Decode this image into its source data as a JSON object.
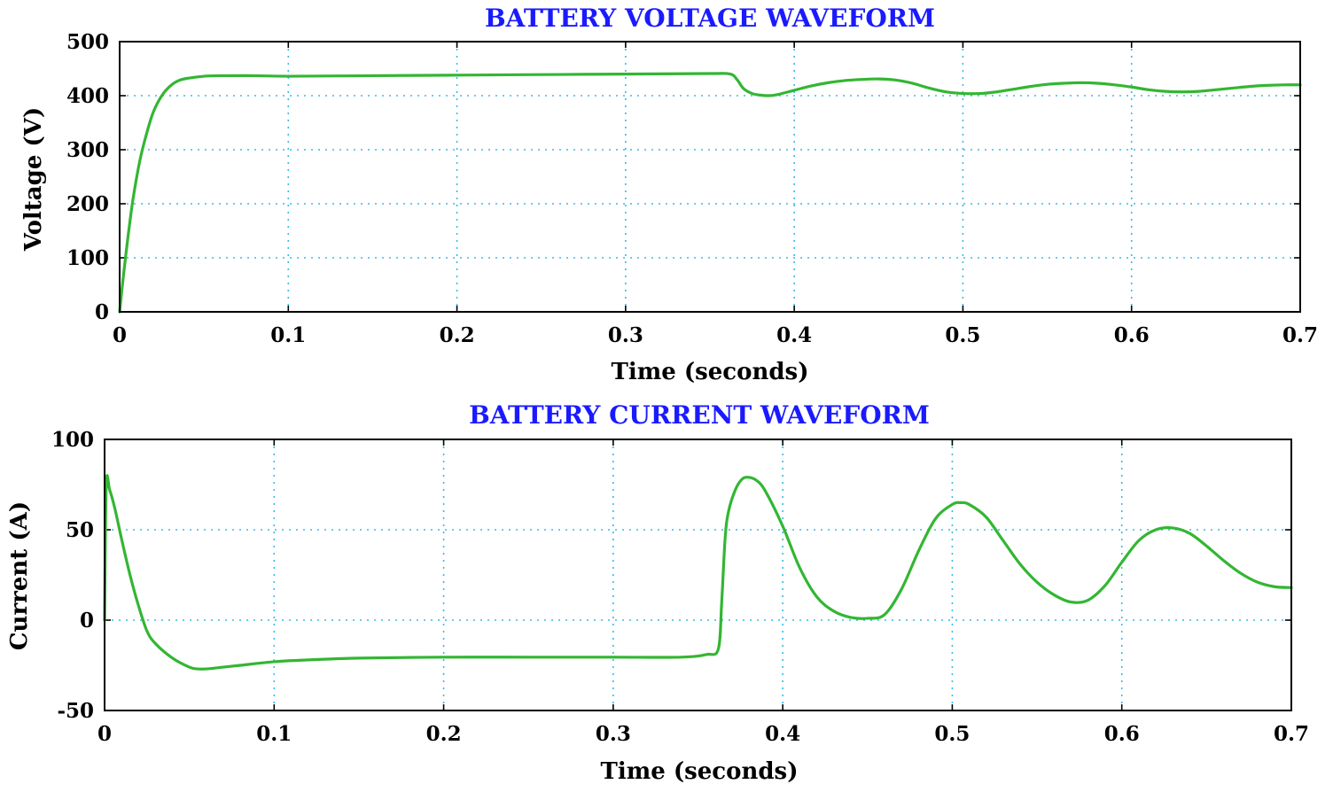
{
  "colors": {
    "title": "#1a1aff",
    "series": "#33b633",
    "grid": "#33bbee",
    "axis": "#000000"
  },
  "chart_data": [
    {
      "type": "line",
      "title": "BATTERY VOLTAGE WAVEFORM",
      "xlabel": "Time (seconds)",
      "ylabel": "Voltage (V)",
      "xlim": [
        0,
        0.7
      ],
      "ylim": [
        0,
        500
      ],
      "xticks": [
        0,
        0.1,
        0.2,
        0.3,
        0.4,
        0.5,
        0.6,
        0.7
      ],
      "xtick_labels": [
        "0",
        "0.1",
        "0.2",
        "0.3",
        "0.4",
        "0.5",
        "0.6",
        "0.7"
      ],
      "yticks": [
        0,
        100,
        200,
        300,
        400,
        500
      ],
      "ytick_labels": [
        "0",
        "100",
        "200",
        "300",
        "400",
        "500"
      ],
      "grid": true,
      "series": [
        {
          "color": "#33b633",
          "x": [
            0,
            0.002,
            0.005,
            0.008,
            0.012,
            0.016,
            0.02,
            0.025,
            0.03,
            0.035,
            0.04,
            0.05,
            0.06,
            0.08,
            0.1,
            0.15,
            0.2,
            0.25,
            0.3,
            0.35,
            0.362,
            0.366,
            0.37,
            0.375,
            0.38,
            0.385,
            0.39,
            0.4,
            0.41,
            0.42,
            0.43,
            0.44,
            0.45,
            0.46,
            0.47,
            0.48,
            0.49,
            0.5,
            0.51,
            0.52,
            0.53,
            0.54,
            0.55,
            0.56,
            0.57,
            0.58,
            0.59,
            0.6,
            0.61,
            0.62,
            0.63,
            0.64,
            0.65,
            0.66,
            0.67,
            0.68,
            0.69,
            0.7
          ],
          "y": [
            0,
            60,
            140,
            210,
            280,
            330,
            370,
            400,
            418,
            428,
            432,
            436,
            437,
            437,
            436,
            437,
            438,
            439,
            440,
            441,
            440,
            430,
            413,
            404,
            401,
            400,
            402,
            410,
            418,
            424,
            428,
            430,
            431,
            429,
            423,
            414,
            407,
            404,
            404,
            407,
            412,
            417,
            421,
            423,
            424,
            423,
            420,
            416,
            411,
            408,
            407,
            408,
            411,
            414,
            417,
            419,
            420,
            420
          ]
        }
      ]
    },
    {
      "type": "line",
      "title": "BATTERY CURRENT WAVEFORM",
      "xlabel": "Time (seconds)",
      "ylabel": "Current (A)",
      "xlim": [
        0,
        0.7
      ],
      "ylim": [
        -50,
        100
      ],
      "xticks": [
        0,
        0.1,
        0.2,
        0.3,
        0.4,
        0.5,
        0.6,
        0.7
      ],
      "xtick_labels": [
        "0",
        "0.1",
        "0.2",
        "0.3",
        "0.4",
        "0.5",
        "0.6",
        "0.7"
      ],
      "yticks": [
        -50,
        0,
        50,
        100
      ],
      "ytick_labels": [
        "-50",
        "0",
        "50",
        "100"
      ],
      "grid": true,
      "series": [
        {
          "color": "#33b633",
          "x": [
            0,
            0.001,
            0.003,
            0.006,
            0.01,
            0.015,
            0.02,
            0.025,
            0.03,
            0.04,
            0.05,
            0.055,
            0.06,
            0.07,
            0.08,
            0.1,
            0.12,
            0.15,
            0.2,
            0.25,
            0.3,
            0.34,
            0.355,
            0.362,
            0.364,
            0.366,
            0.368,
            0.372,
            0.376,
            0.38,
            0.385,
            0.39,
            0.4,
            0.41,
            0.42,
            0.43,
            0.44,
            0.45,
            0.46,
            0.47,
            0.48,
            0.49,
            0.5,
            0.505,
            0.51,
            0.52,
            0.53,
            0.54,
            0.55,
            0.56,
            0.57,
            0.58,
            0.59,
            0.6,
            0.61,
            0.62,
            0.63,
            0.64,
            0.65,
            0.66,
            0.67,
            0.68,
            0.69,
            0.7
          ],
          "y": [
            0,
            75,
            72,
            62,
            45,
            25,
            8,
            -6,
            -13,
            -21,
            -26,
            -27,
            -27,
            -26,
            -25,
            -23,
            -22,
            -21,
            -20.5,
            -20.5,
            -20.5,
            -20.5,
            -19,
            -16,
            10,
            45,
            60,
            72,
            78,
            79,
            77,
            71,
            52,
            29,
            13,
            5,
            1.5,
            1,
            3,
            17,
            38,
            56,
            64,
            65,
            64,
            57,
            44,
            31,
            21,
            14,
            10,
            11,
            19,
            32,
            44,
            50,
            51,
            48,
            41,
            33,
            26,
            21,
            18.5,
            18
          ]
        }
      ]
    }
  ]
}
